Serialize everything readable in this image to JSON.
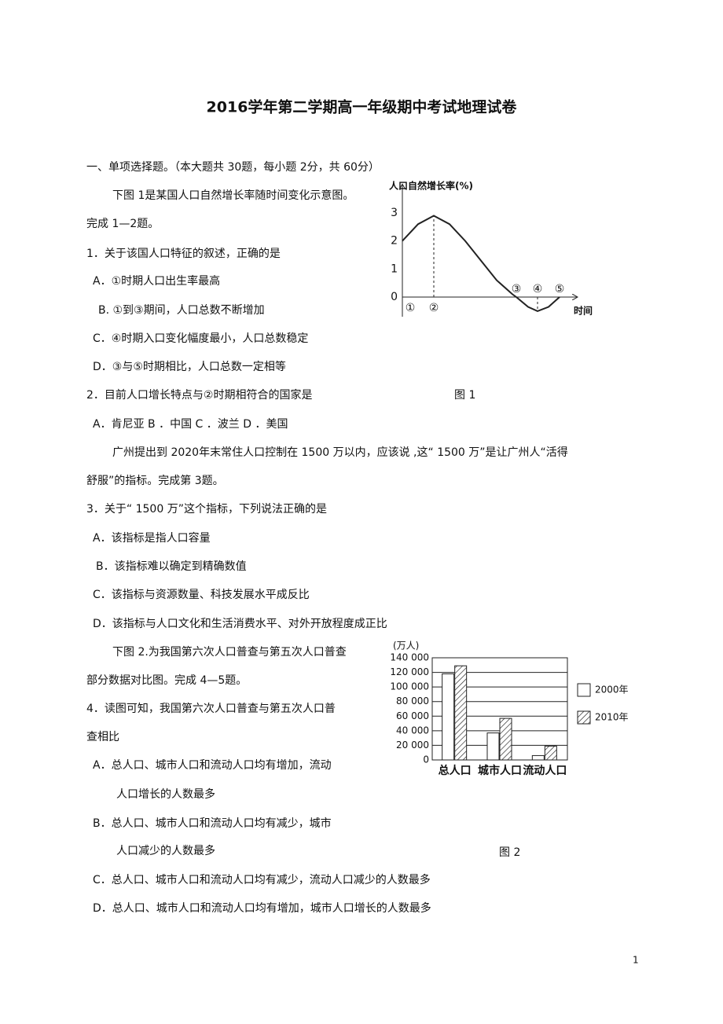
{
  "document": {
    "title": "2016学年第二学期高一年级期中考试地理试卷",
    "lines": [
      "一、单项选择题。（本大题共  30题，每小题  2分，共  60分）",
      "下图  1是某国人口自然增长率随时间变化示意图。",
      "完成  1—2题。",
      "1．关于该国人口特征的叙述，正确的是",
      "A．①时期人口出生率最高",
      "B. ①到③期间，人口总数不断增加",
      "C．④时期入口变化幅度最小，人口总数稳定",
      "D．③与⑤时期相比，人口总数一定相等",
      "2．目前人口增长特点与②时期相符合的国家是",
      "A．肯尼亚    B ．中国    C ．波兰    D ．美国",
      "广州提出到   2020年末常住人口控制在    1500 万以内，应该说  ,这“ 1500 万”是让广州人“活得",
      "舒服”的指标。完成第   3题。",
      "3．关于“ 1500 万”这个指标，下列说法正确的是",
      "A．该指标是指人口容量",
      "B．该指标难以确定到精确数值",
      "C．该指标与资源数量、科技发展水平成反比",
      "D．该指标与人口文化和生活消费水平、对外开放程度成正比",
      "下图  2.为我国第六次人口普查与第五次人口普查",
      "部分数据对比图。完成    4—5题。",
      "4．读图可知，我国第六次人口普查与第五次人口普",
      "查相比",
      "A．总人口、城市人口和流动人口均有增加，流动",
      "人口增长的人数最多",
      "B．总人口、城市人口和流动人口均有减少，城市",
      "人口减少的人数最多",
      "C．总人口、城市人口和流动人口均有减少，流动人口减少的人数最多",
      "D．总人口、城市人口和流动人口均有增加，城市人口增长的人数最多"
    ],
    "figure_captions": [
      "图 1",
      "图 2"
    ],
    "page_number": "1"
  },
  "chart_data": [
    {
      "type": "line",
      "title": "人口自然增长率(%)",
      "x_label": "时间",
      "x": [
        0,
        1,
        2,
        3,
        4,
        5,
        6,
        7,
        7.25,
        8,
        8.6,
        9.3,
        10
      ],
      "values": [
        2,
        2.6,
        2.9,
        2.6,
        2.0,
        1.3,
        0.6,
        0.1,
        0,
        -0.35,
        -0.5,
        -0.35,
        0
      ],
      "color": "#222222",
      "xlim": [
        0,
        10.5
      ],
      "ylim": [
        -0.7,
        4
      ],
      "yticks": [
        0,
        1,
        2,
        3
      ],
      "xticks": [
        {
          "value": 0.5,
          "label": "①"
        },
        {
          "value": 2,
          "label": "②"
        },
        {
          "value": 7.25,
          "label": "③"
        },
        {
          "value": 8.6,
          "label": "④"
        },
        {
          "value": 10,
          "label": "⑤"
        }
      ]
    },
    {
      "type": "bar",
      "y_label": "(万人)",
      "categories": [
        "总人口",
        "城市人口",
        "流动人口"
      ],
      "series": [
        {
          "name": "2000年",
          "color": "#ffffff",
          "values": [
            118000,
            37000,
            6000
          ]
        },
        {
          "name": "2010年",
          "color": "#ffffff",
          "pattern": "hatch",
          "values": [
            129000,
            57000,
            19000
          ]
        }
      ],
      "ylim": [
        0,
        140000
      ],
      "yticks": [
        0,
        {
          "value": 20000,
          "label": "20 000"
        },
        {
          "value": 40000,
          "label": "40 000"
        },
        {
          "value": 60000,
          "label": "60 000"
        },
        {
          "value": 80000,
          "label": "80 000"
        },
        {
          "value": 100000,
          "label": "100 000"
        },
        {
          "value": 120000,
          "label": "120 000"
        },
        {
          "value": 140000,
          "label": "140 000"
        }
      ],
      "grid": true,
      "legend": "right"
    }
  ]
}
